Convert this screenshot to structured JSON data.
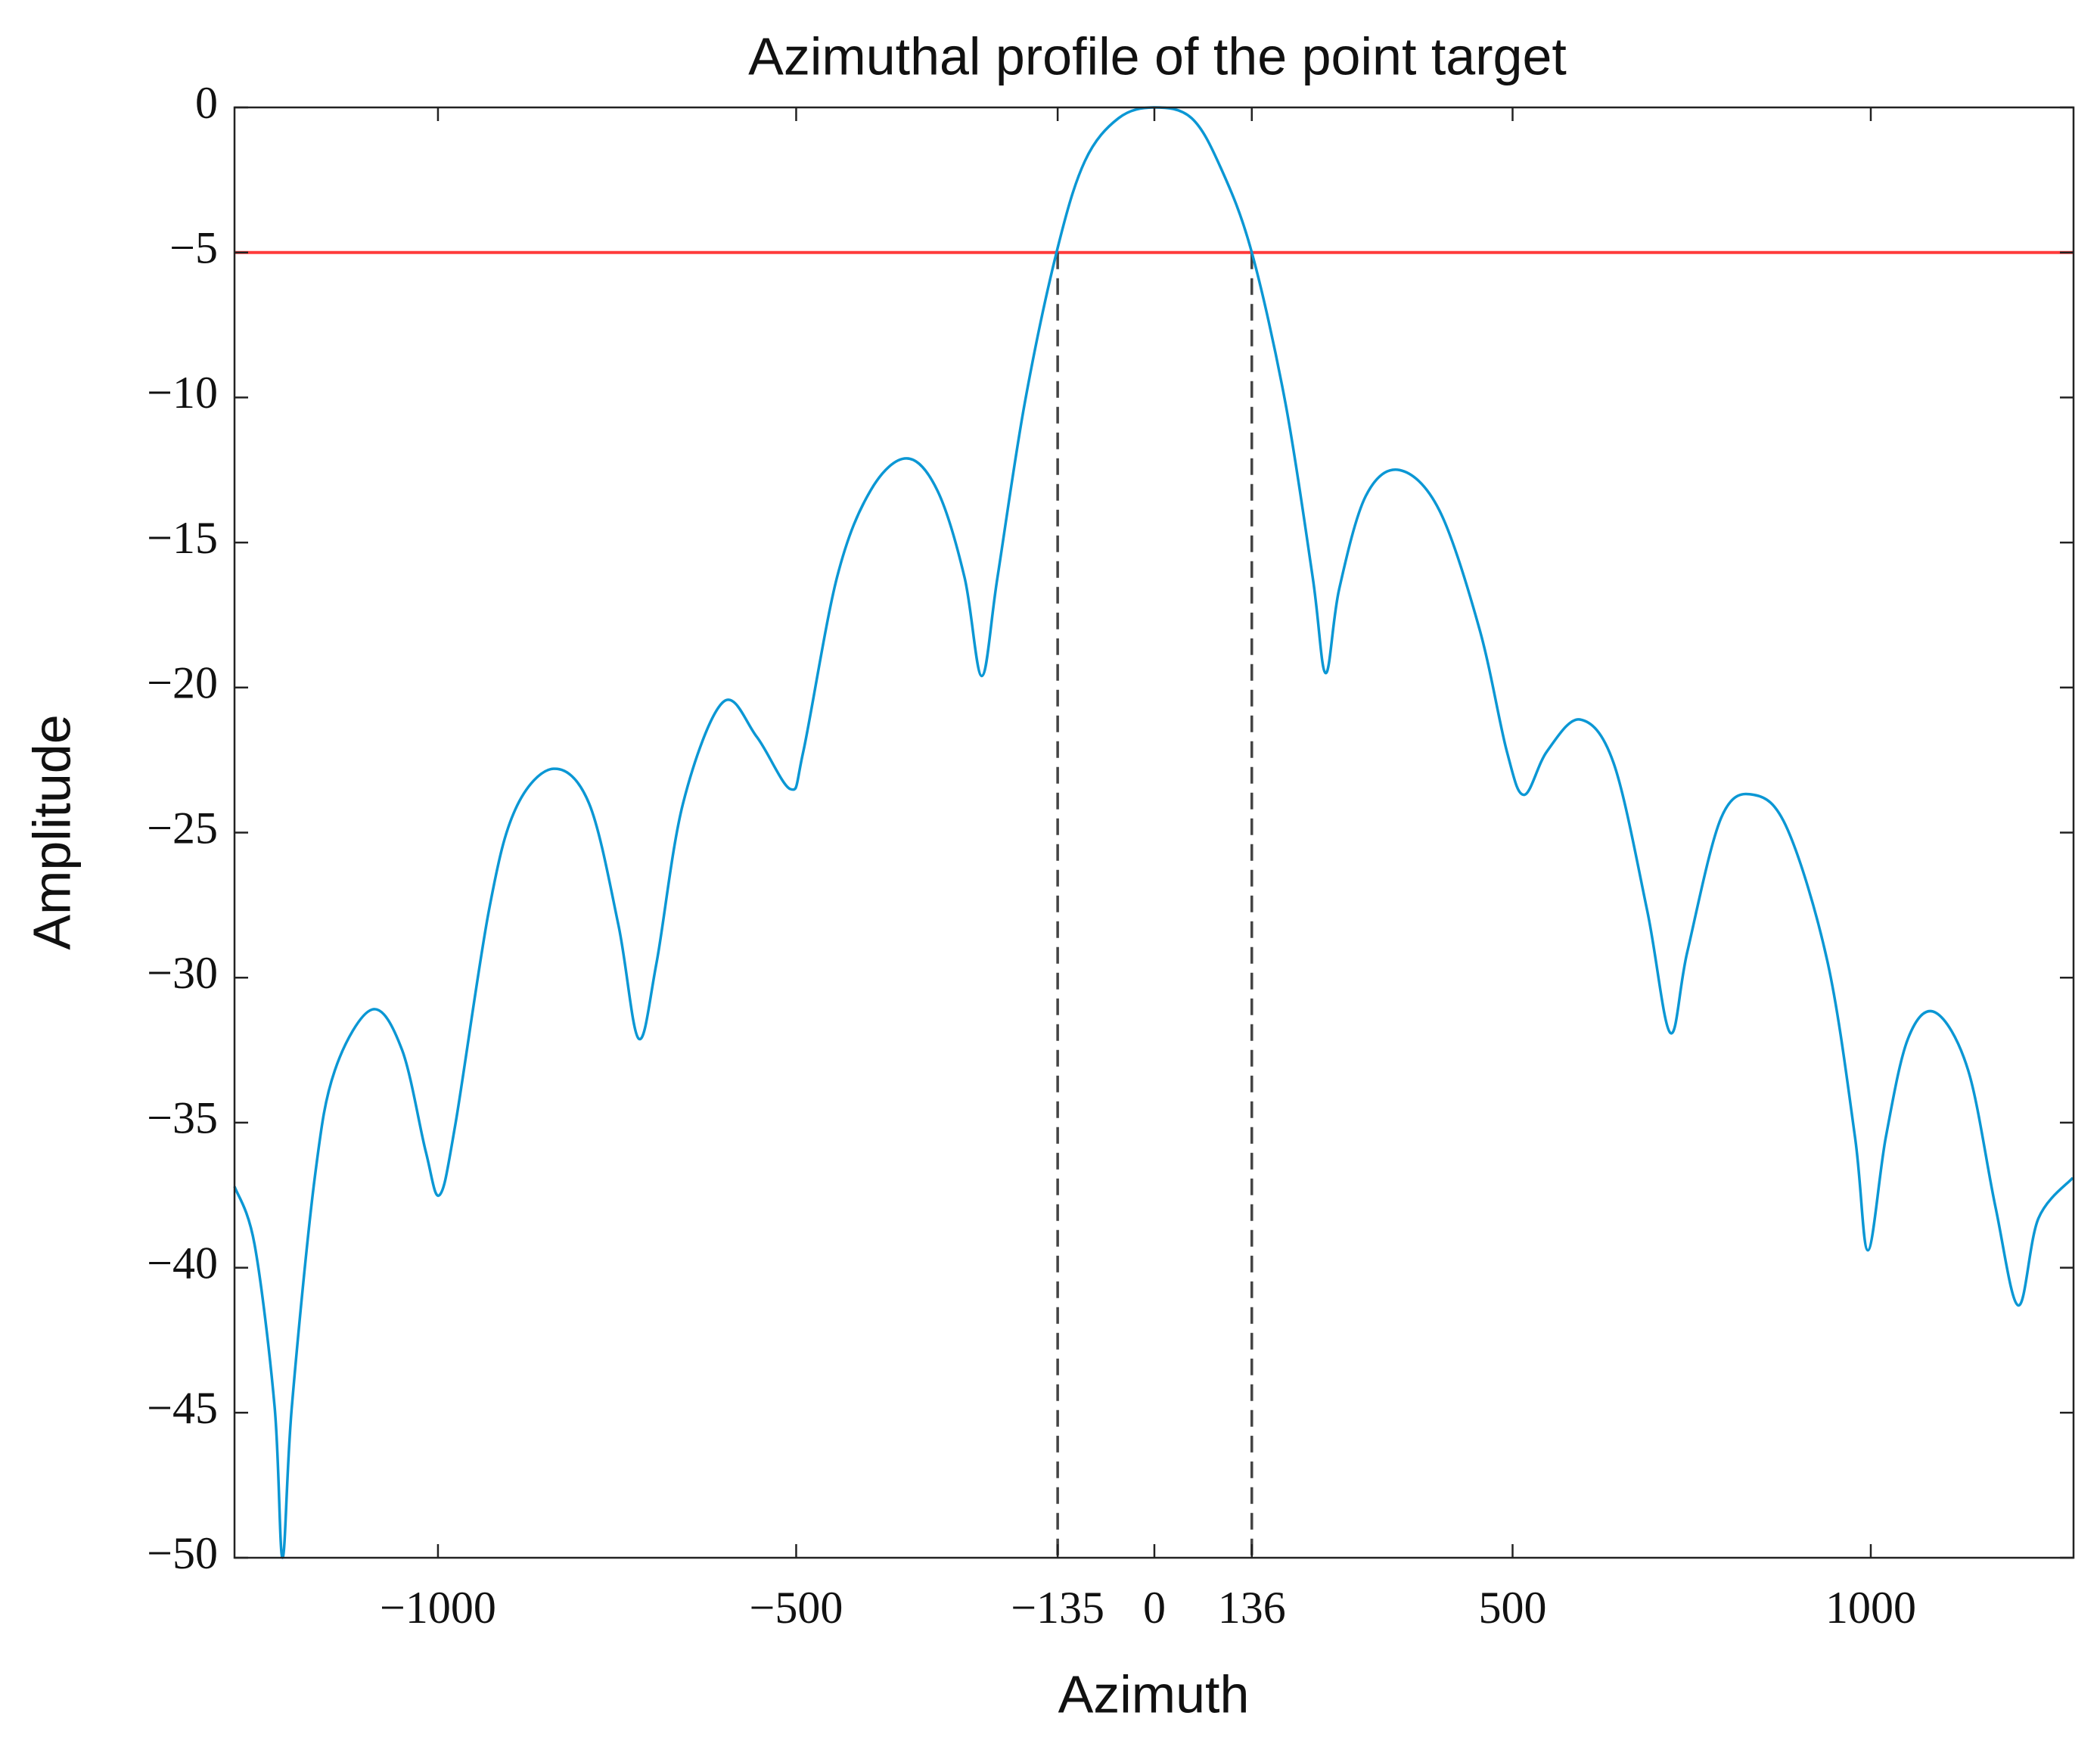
{
  "chart_data": {
    "type": "line",
    "title": "Azimuthal profile of the point target",
    "xlabel": "Azimuth",
    "ylabel": "Amplitude",
    "x": [
      -1284,
      -1256,
      -1228,
      -1217,
      -1204,
      -1172,
      -1144,
      -1092,
      -1050,
      -1017,
      -998,
      -976,
      -929,
      -892,
      -839,
      -789,
      -748,
      -720,
      -695,
      -658,
      -602,
      -555,
      -508,
      -490,
      -443,
      -396,
      -346,
      -303,
      -265,
      -241,
      -219,
      -181,
      -136,
      -97,
      -50,
      0,
      52,
      93,
      136,
      183,
      221,
      239,
      258,
      295,
      342,
      398,
      454,
      492,
      516,
      548,
      594,
      641,
      688,
      720,
      744,
      791,
      837,
      884,
      940,
      978,
      996,
      1021,
      1052,
      1090,
      1136,
      1174,
      1206,
      1234,
      1282
    ],
    "values": [
      -37.2,
      -39.2,
      -44.8,
      -50,
      -44.8,
      -36.9,
      -33.2,
      -31.1,
      -32.5,
      -36,
      -37.5,
      -35.1,
      -27.7,
      -24.2,
      -22.8,
      -24,
      -28.2,
      -32.1,
      -29.5,
      -24,
      -20.5,
      -21.7,
      -23.5,
      -22.2,
      -16.2,
      -13.2,
      -12.1,
      -13.2,
      -16.2,
      -19.6,
      -16.2,
      -10.2,
      -4.94,
      -1.85,
      -0.37,
      0,
      -0.37,
      -2.1,
      -5,
      -10.2,
      -16.2,
      -19.5,
      -16.6,
      -13.4,
      -12.5,
      -13.9,
      -18,
      -22.2,
      -23.7,
      -22.2,
      -21.1,
      -22.6,
      -27.7,
      -31.9,
      -29.1,
      -24.5,
      -23.7,
      -24.9,
      -29.5,
      -35.5,
      -39.4,
      -35.5,
      -32.1,
      -31.2,
      -33.2,
      -37.9,
      -41.3,
      -38.3,
      -36.9
    ],
    "color": "#0b97d4",
    "xlim": [
      -1284,
      1283
    ],
    "ylim": [
      -50,
      0
    ],
    "xticks": [
      {
        "value": -1000,
        "label": "−1000"
      },
      {
        "value": -500,
        "label": "−500"
      },
      {
        "value": -135,
        "label": "−135"
      },
      0,
      136,
      500,
      1000
    ],
    "yticks": [
      0,
      {
        "value": -5,
        "label": "−5"
      },
      {
        "value": -10,
        "label": "−10"
      },
      {
        "value": -15,
        "label": "−15"
      },
      {
        "value": -20,
        "label": "−20"
      },
      {
        "value": -25,
        "label": "−25"
      },
      {
        "value": -30,
        "label": "−30"
      },
      {
        "value": -35,
        "label": "−35"
      },
      {
        "value": -40,
        "label": "−40"
      },
      {
        "value": -45,
        "label": "−45"
      },
      {
        "value": -50,
        "label": "−50"
      }
    ],
    "hline": {
      "y": -5,
      "color": "#ff3b3b"
    },
    "vlines": [
      {
        "x": -135,
        "color": "#444444"
      },
      {
        "x": 136,
        "color": "#444444"
      }
    ]
  }
}
